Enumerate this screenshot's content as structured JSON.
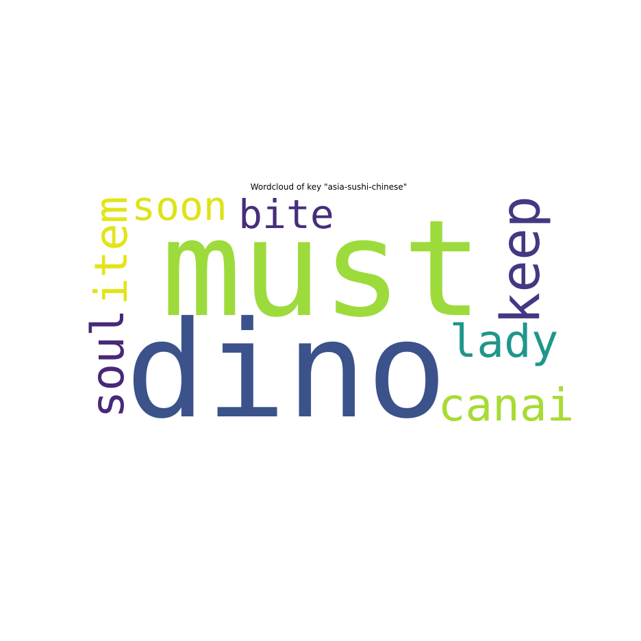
{
  "chart_data": {
    "type": "wordcloud",
    "title": "Wordcloud of key \"asia-sushi-chinese\"",
    "words": [
      {
        "text": "must",
        "weight": 1.0,
        "color": "#9ddb3d",
        "orientation": "horizontal"
      },
      {
        "text": "dino",
        "weight": 1.0,
        "color": "#3b528b",
        "orientation": "horizontal"
      },
      {
        "text": "keep",
        "weight": 0.45,
        "color": "#453781",
        "orientation": "vertical"
      },
      {
        "text": "lady",
        "weight": 0.4,
        "color": "#1f968b",
        "orientation": "horizontal"
      },
      {
        "text": "canai",
        "weight": 0.4,
        "color": "#a8db34",
        "orientation": "horizontal"
      },
      {
        "text": "soul",
        "weight": 0.4,
        "color": "#482878",
        "orientation": "vertical"
      },
      {
        "text": "item",
        "weight": 0.4,
        "color": "#e3e418",
        "orientation": "vertical"
      },
      {
        "text": "soon",
        "weight": 0.35,
        "color": "#dde318",
        "orientation": "horizontal"
      },
      {
        "text": "bite",
        "weight": 0.35,
        "color": "#472d7b",
        "orientation": "horizontal"
      }
    ]
  }
}
